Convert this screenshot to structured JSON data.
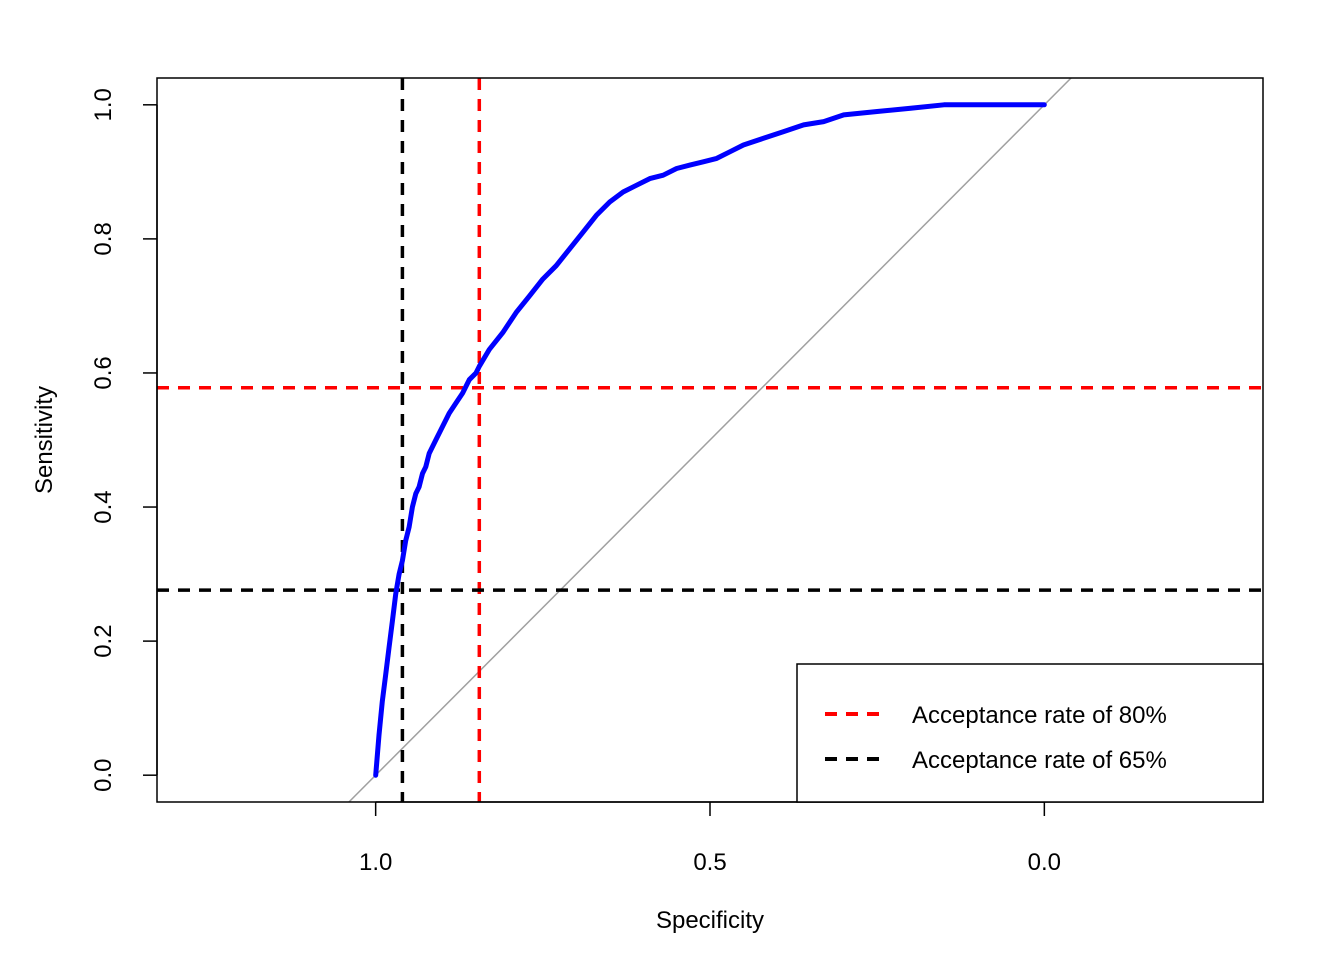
{
  "chart_data": {
    "type": "line",
    "title": "",
    "xlabel": "Specificity",
    "ylabel": "Sensitivity",
    "x_reversed": true,
    "xlim": [
      1.327,
      -0.327
    ],
    "ylim": [
      -0.04,
      1.04
    ],
    "xticks": [
      {
        "value": 1.0,
        "label": "1.0"
      },
      {
        "value": 0.5,
        "label": "0.5"
      },
      {
        "value": 0.0,
        "label": "0.0"
      }
    ],
    "yticks": [
      {
        "value": 0.0,
        "label": "0.0"
      },
      {
        "value": 0.2,
        "label": "0.2"
      },
      {
        "value": 0.4,
        "label": "0.4"
      },
      {
        "value": 0.6,
        "label": "0.6"
      },
      {
        "value": 0.8,
        "label": "0.8"
      },
      {
        "value": 1.0,
        "label": "1.0"
      }
    ],
    "grid": false,
    "series": [
      {
        "color": "#0000ff",
        "x": [
          1.0,
          0.995,
          0.99,
          0.985,
          0.98,
          0.975,
          0.97,
          0.965,
          0.96,
          0.955,
          0.95,
          0.945,
          0.94,
          0.935,
          0.93,
          0.925,
          0.92,
          0.91,
          0.9,
          0.89,
          0.88,
          0.87,
          0.86,
          0.85,
          0.845,
          0.83,
          0.81,
          0.79,
          0.77,
          0.75,
          0.73,
          0.71,
          0.69,
          0.67,
          0.65,
          0.63,
          0.61,
          0.59,
          0.57,
          0.55,
          0.53,
          0.51,
          0.49,
          0.47,
          0.45,
          0.42,
          0.39,
          0.36,
          0.33,
          0.3,
          0.25,
          0.2,
          0.15,
          0.1,
          0.05,
          0.0
        ],
        "y": [
          0.0,
          0.06,
          0.11,
          0.15,
          0.19,
          0.23,
          0.27,
          0.3,
          0.32,
          0.35,
          0.37,
          0.4,
          0.42,
          0.43,
          0.45,
          0.46,
          0.48,
          0.5,
          0.52,
          0.54,
          0.555,
          0.57,
          0.59,
          0.6,
          0.61,
          0.635,
          0.66,
          0.69,
          0.715,
          0.74,
          0.76,
          0.785,
          0.81,
          0.835,
          0.855,
          0.87,
          0.88,
          0.89,
          0.895,
          0.905,
          0.91,
          0.915,
          0.92,
          0.93,
          0.94,
          0.95,
          0.96,
          0.97,
          0.975,
          0.985,
          0.99,
          0.995,
          1.0,
          1.0,
          1.0,
          1.0
        ]
      }
    ],
    "reference_lines": [
      {
        "orientation": "diagonal",
        "from": [
          1.04,
          -0.04
        ],
        "to": [
          -0.04,
          1.04
        ],
        "color": "#a0a0a0",
        "style": "solid"
      },
      {
        "orientation": "horizontal",
        "value": 0.578,
        "color": "#ff0000",
        "style": "dashed"
      },
      {
        "orientation": "vertical",
        "value": 0.845,
        "color": "#ff0000",
        "style": "dashed"
      },
      {
        "orientation": "horizontal",
        "value": 0.276,
        "color": "#000000",
        "style": "dashed"
      },
      {
        "orientation": "vertical",
        "value": 0.96,
        "color": "#000000",
        "style": "dashed"
      }
    ],
    "legend": {
      "placement": "bottom-right",
      "items": [
        {
          "label": "Acceptance rate of 80%",
          "color": "#ff0000",
          "style": "dashed"
        },
        {
          "label": "Acceptance rate of 65%",
          "color": "#000000",
          "style": "dashed"
        }
      ]
    }
  }
}
